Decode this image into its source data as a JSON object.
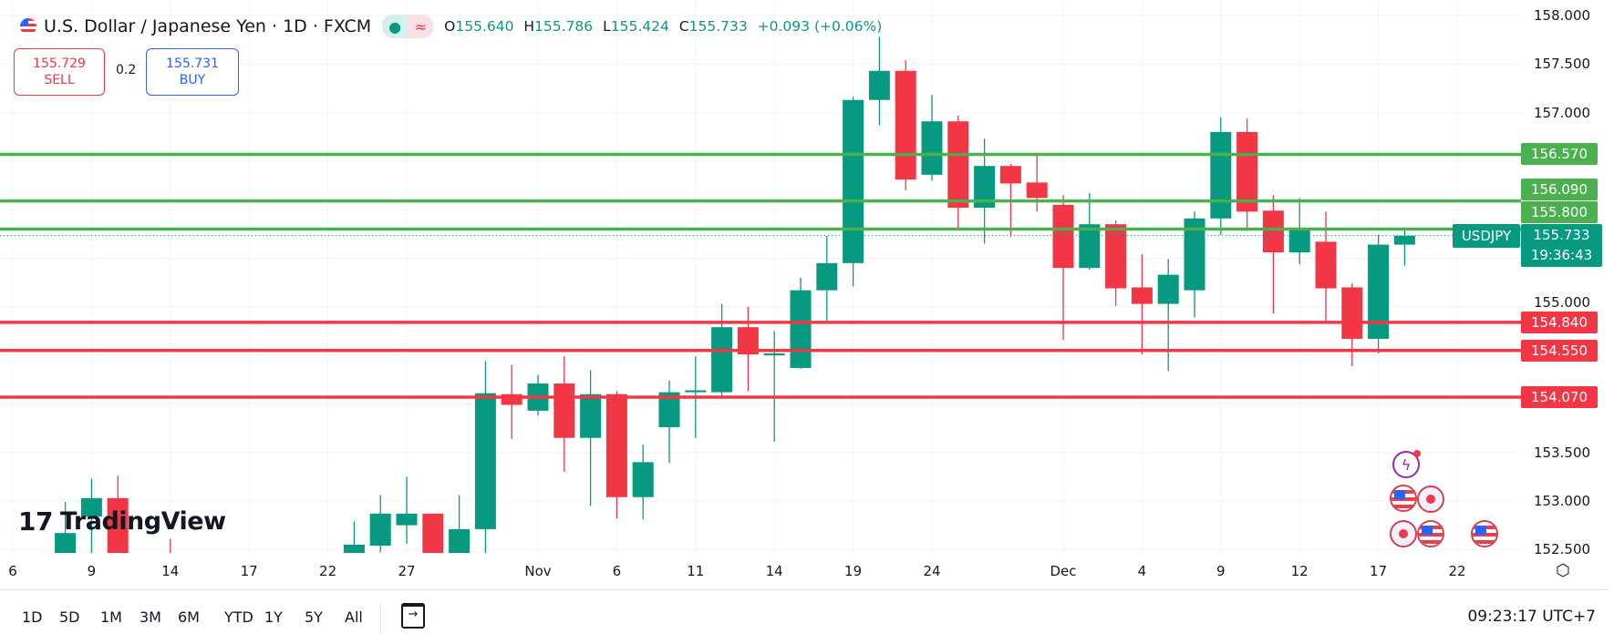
{
  "header": {
    "title": "U.S. Dollar / Japanese Yen · 1D · FXCM",
    "market_status_icon": "green-dot",
    "data_icon": "≈",
    "ohlc": {
      "o_label": "O",
      "o": "155.640",
      "h_label": "H",
      "h": "155.786",
      "l_label": "L",
      "l": "155.424",
      "c_label": "C",
      "c": "155.733",
      "change": "+0.093 (+0.06%)"
    }
  },
  "trade": {
    "sell_price": "155.729",
    "sell_label": "SELL",
    "spread": "0.2",
    "buy_price": "155.731",
    "buy_label": "BUY"
  },
  "colors": {
    "up": "#089981",
    "down": "#f23645",
    "support": "#f23645",
    "resistance": "#4caf50"
  },
  "price_axis": {
    "ticks": [
      "158.000",
      "157.500",
      "157.000",
      "155.000",
      "153.500",
      "153.000",
      "152.500"
    ]
  },
  "horizontal_lines": [
    {
      "price": 156.57,
      "label": "156.570",
      "kind": "resistance"
    },
    {
      "price": 156.09,
      "label": "156.090",
      "kind": "resistance"
    },
    {
      "price": 155.8,
      "label": "155.800",
      "kind": "resistance"
    },
    {
      "price": 154.84,
      "label": "154.840",
      "kind": "support"
    },
    {
      "price": 154.55,
      "label": "154.550",
      "kind": "support"
    },
    {
      "price": 154.07,
      "label": "154.070",
      "kind": "support"
    }
  ],
  "current": {
    "symbol": "USDJPY",
    "price": "155.733",
    "countdown": "19:36:43"
  },
  "time_axis": {
    "labels": [
      "6",
      "9",
      "14",
      "17",
      "22",
      "27",
      "Nov",
      "6",
      "11",
      "14",
      "19",
      "24",
      "Dec",
      "4",
      "9",
      "12",
      "17",
      "22"
    ]
  },
  "chart_data": {
    "type": "candlestick",
    "ylim": [
      152.5,
      158.0
    ],
    "candles": [
      {
        "t": "2024-10-08",
        "o": 152.45,
        "h": 152.99,
        "l": 152.3,
        "c": 152.67
      },
      {
        "t": "2024-10-09",
        "o": 152.84,
        "h": 153.23,
        "l": 152.4,
        "c": 153.03
      },
      {
        "t": "2024-10-10",
        "o": 153.03,
        "h": 153.26,
        "l": 152.3,
        "c": 152.4
      },
      {
        "t": "2024-10-14",
        "o": 152.3,
        "h": 152.61,
        "l": 152.0,
        "c": 152.2
      },
      {
        "t": "2024-10-23",
        "o": 152.45,
        "h": 152.79,
        "l": 152.3,
        "c": 152.55
      },
      {
        "t": "2024-10-24",
        "o": 152.54,
        "h": 153.06,
        "l": 152.47,
        "c": 152.87
      },
      {
        "t": "2024-10-27",
        "o": 152.75,
        "h": 153.25,
        "l": 152.56,
        "c": 152.87
      },
      {
        "t": "2024-10-28",
        "o": 152.87,
        "h": 152.87,
        "l": 152.3,
        "c": 152.45
      },
      {
        "t": "2024-10-29",
        "o": 152.46,
        "h": 153.06,
        "l": 152.4,
        "c": 152.71
      },
      {
        "t": "2024-10-30",
        "o": 152.71,
        "h": 154.44,
        "l": 152.45,
        "c": 154.11
      },
      {
        "t": "2024-10-31",
        "o": 154.1,
        "h": 154.4,
        "l": 153.64,
        "c": 153.99
      },
      {
        "t": "2024-11-03",
        "o": 153.93,
        "h": 154.3,
        "l": 153.88,
        "c": 154.21
      },
      {
        "t": "2024-11-04",
        "o": 154.21,
        "h": 154.49,
        "l": 153.3,
        "c": 153.65
      },
      {
        "t": "2024-11-05",
        "o": 153.65,
        "h": 154.35,
        "l": 152.95,
        "c": 154.1
      },
      {
        "t": "2024-11-06",
        "o": 154.1,
        "h": 154.13,
        "l": 152.82,
        "c": 153.04
      },
      {
        "t": "2024-11-07",
        "o": 153.04,
        "h": 153.58,
        "l": 152.81,
        "c": 153.4
      },
      {
        "t": "2024-11-10",
        "o": 153.76,
        "h": 154.24,
        "l": 153.39,
        "c": 154.12
      },
      {
        "t": "2024-11-11",
        "o": 154.12,
        "h": 154.49,
        "l": 153.65,
        "c": 154.14
      },
      {
        "t": "2024-11-12",
        "o": 154.12,
        "h": 155.03,
        "l": 154.05,
        "c": 154.79
      },
      {
        "t": "2024-11-13",
        "o": 154.79,
        "h": 155.0,
        "l": 154.13,
        "c": 154.51
      },
      {
        "t": "2024-11-14",
        "o": 154.5,
        "h": 154.75,
        "l": 153.61,
        "c": 154.52
      },
      {
        "t": "2024-11-17",
        "o": 154.37,
        "h": 155.3,
        "l": 154.36,
        "c": 155.17
      },
      {
        "t": "2024-11-18",
        "o": 155.17,
        "h": 155.73,
        "l": 154.84,
        "c": 155.45
      },
      {
        "t": "2024-11-19",
        "o": 155.45,
        "h": 157.16,
        "l": 155.21,
        "c": 157.13
      },
      {
        "t": "2024-11-20",
        "o": 157.13,
        "h": 157.78,
        "l": 156.87,
        "c": 157.43
      },
      {
        "t": "2024-11-21",
        "o": 157.43,
        "h": 157.54,
        "l": 156.2,
        "c": 156.31
      },
      {
        "t": "2024-11-24",
        "o": 156.36,
        "h": 157.18,
        "l": 156.3,
        "c": 156.91
      },
      {
        "t": "2024-11-25",
        "o": 156.91,
        "h": 156.97,
        "l": 155.81,
        "c": 156.02
      },
      {
        "t": "2024-11-26",
        "o": 156.02,
        "h": 156.73,
        "l": 155.65,
        "c": 156.45
      },
      {
        "t": "2024-11-27",
        "o": 156.45,
        "h": 156.47,
        "l": 155.72,
        "c": 156.27
      },
      {
        "t": "2024-11-28",
        "o": 156.28,
        "h": 156.58,
        "l": 155.98,
        "c": 156.12
      },
      {
        "t": "2024-12-01",
        "o": 156.05,
        "h": 156.15,
        "l": 154.66,
        "c": 155.4
      },
      {
        "t": "2024-12-02",
        "o": 155.4,
        "h": 156.17,
        "l": 155.38,
        "c": 155.85
      },
      {
        "t": "2024-12-03",
        "o": 155.85,
        "h": 155.89,
        "l": 155.01,
        "c": 155.19
      },
      {
        "t": "2024-12-04",
        "o": 155.2,
        "h": 155.54,
        "l": 154.51,
        "c": 155.03
      },
      {
        "t": "2024-12-05",
        "o": 155.03,
        "h": 155.49,
        "l": 154.34,
        "c": 155.33
      },
      {
        "t": "2024-12-08",
        "o": 155.17,
        "h": 155.98,
        "l": 154.89,
        "c": 155.91
      },
      {
        "t": "2024-12-09",
        "o": 155.91,
        "h": 156.95,
        "l": 155.74,
        "c": 156.8
      },
      {
        "t": "2024-12-10",
        "o": 156.8,
        "h": 156.94,
        "l": 155.78,
        "c": 155.98
      },
      {
        "t": "2024-12-11",
        "o": 155.99,
        "h": 156.15,
        "l": 154.93,
        "c": 155.56
      },
      {
        "t": "2024-12-12",
        "o": 155.56,
        "h": 156.12,
        "l": 155.44,
        "c": 155.8
      },
      {
        "t": "2024-12-15",
        "o": 155.67,
        "h": 155.98,
        "l": 154.85,
        "c": 155.19
      },
      {
        "t": "2024-12-16",
        "o": 155.2,
        "h": 155.24,
        "l": 154.39,
        "c": 154.67
      },
      {
        "t": "2024-12-17",
        "o": 154.67,
        "h": 155.74,
        "l": 154.52,
        "c": 155.64
      },
      {
        "t": "2024-12-18",
        "o": 155.64,
        "h": 155.786,
        "l": 155.424,
        "c": 155.733
      }
    ]
  },
  "events": [
    "lightning-icon",
    "us-flag-icon",
    "dot-icon",
    "dot-icon",
    "us-flag-icon",
    "us-flag-icon"
  ],
  "logo": "TradingView",
  "footer": {
    "ranges": [
      "1D",
      "5D",
      "1M",
      "3M",
      "6M",
      "YTD",
      "1Y",
      "5Y",
      "All"
    ],
    "goto_icon": "calendar-goto-icon",
    "clock": "09:23:17 UTC+7"
  }
}
